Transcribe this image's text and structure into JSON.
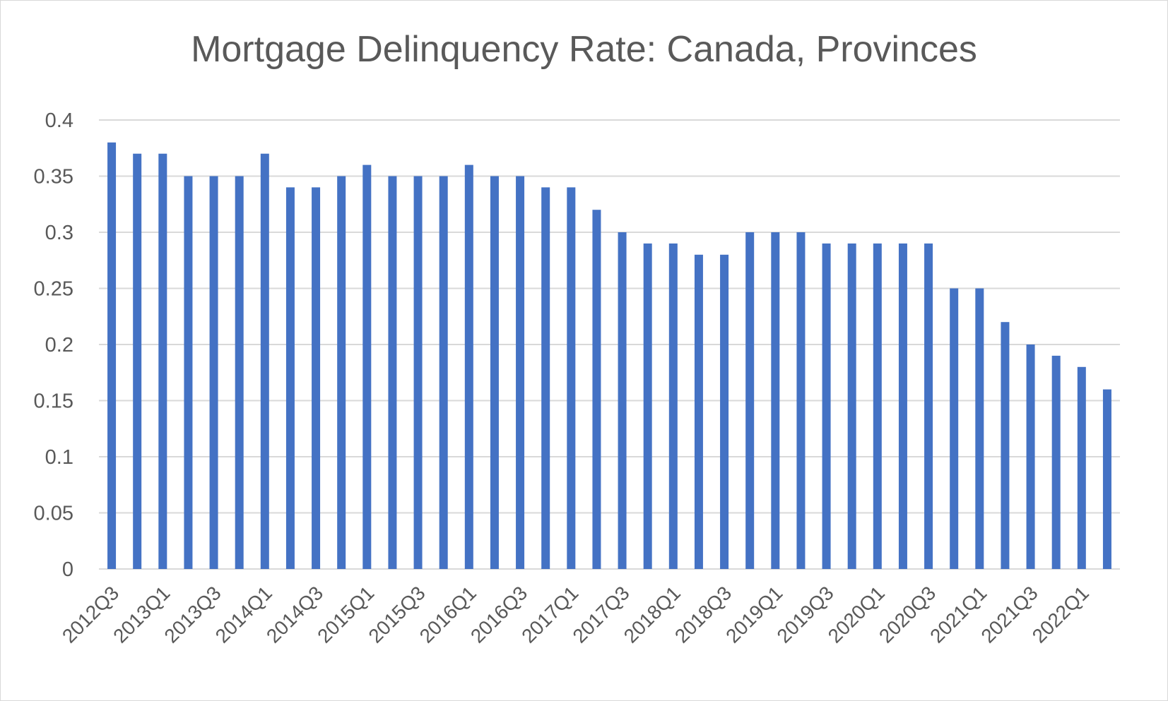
{
  "chart_data": {
    "type": "bar",
    "title": "Mortgage Delinquency Rate: Canada, Provinces",
    "xlabel": "",
    "ylabel": "",
    "ylim": [
      0,
      0.4
    ],
    "yticks": [
      "0",
      "0.05",
      "0.1",
      "0.15",
      "0.2",
      "0.25",
      "0.3",
      "0.35",
      "0.4"
    ],
    "grid": true,
    "bar_color": "#4472C4",
    "categories": [
      "2012Q3",
      "2012Q4",
      "2013Q1",
      "2013Q2",
      "2013Q3",
      "2013Q4",
      "2014Q1",
      "2014Q2",
      "2014Q3",
      "2014Q4",
      "2015Q1",
      "2015Q2",
      "2015Q3",
      "2015Q4",
      "2016Q1",
      "2016Q2",
      "2016Q3",
      "2016Q4",
      "2017Q1",
      "2017Q2",
      "2017Q3",
      "2017Q4",
      "2018Q1",
      "2018Q2",
      "2018Q3",
      "2018Q4",
      "2019Q1",
      "2019Q2",
      "2019Q3",
      "2019Q4",
      "2020Q1",
      "2020Q2",
      "2020Q3",
      "2020Q4",
      "2021Q1",
      "2021Q2",
      "2021Q3",
      "2021Q4",
      "2022Q1",
      "2022Q2"
    ],
    "values": [
      0.38,
      0.37,
      0.37,
      0.35,
      0.35,
      0.35,
      0.37,
      0.34,
      0.34,
      0.35,
      0.36,
      0.35,
      0.35,
      0.35,
      0.36,
      0.35,
      0.35,
      0.34,
      0.34,
      0.32,
      0.3,
      0.29,
      0.29,
      0.28,
      0.28,
      0.3,
      0.3,
      0.3,
      0.29,
      0.29,
      0.29,
      0.29,
      0.29,
      0.25,
      0.25,
      0.22,
      0.2,
      0.19,
      0.18,
      0.16
    ],
    "xtick_labels": [
      "2012Q3",
      "2013Q1",
      "2013Q3",
      "2014Q1",
      "2014Q3",
      "2015Q1",
      "2015Q3",
      "2016Q1",
      "2016Q3",
      "2017Q1",
      "2017Q3",
      "2018Q1",
      "2018Q3",
      "2019Q1",
      "2019Q3",
      "2020Q1",
      "2020Q3",
      "2021Q1",
      "2021Q3",
      "2022Q1"
    ]
  }
}
